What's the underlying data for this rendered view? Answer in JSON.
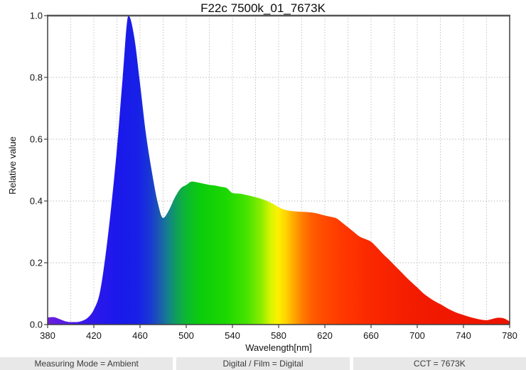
{
  "chart_data": {
    "type": "area",
    "title": "F22c 7500k_01_7673K",
    "xlabel": "Wavelength[nm]",
    "ylabel": "Relative value",
    "xlim": [
      380,
      780
    ],
    "ylim": [
      0.0,
      1.0
    ],
    "x_ticks": [
      380,
      420,
      460,
      500,
      540,
      580,
      620,
      660,
      700,
      740,
      780
    ],
    "y_ticks": [
      {
        "value": 0.0,
        "label": "0.0"
      },
      {
        "value": 0.2,
        "label": "0.2"
      },
      {
        "value": 0.4,
        "label": "0.4"
      },
      {
        "value": 0.6,
        "label": "0.6"
      },
      {
        "value": 0.8,
        "label": "0.8"
      },
      {
        "value": 1.0,
        "label": "1.0"
      }
    ],
    "x_grid_step": 20,
    "y_grid_step": 0.2,
    "grid_style": "dashed",
    "legend": "none",
    "x": [
      380,
      385,
      390,
      395,
      400,
      405,
      410,
      415,
      420,
      425,
      430,
      435,
      440,
      445,
      450,
      455,
      460,
      465,
      470,
      475,
      480,
      485,
      490,
      495,
      500,
      505,
      510,
      515,
      520,
      525,
      530,
      535,
      540,
      545,
      550,
      555,
      560,
      565,
      570,
      575,
      580,
      585,
      590,
      595,
      600,
      605,
      610,
      615,
      620,
      625,
      630,
      635,
      640,
      645,
      650,
      655,
      660,
      665,
      670,
      675,
      680,
      685,
      690,
      695,
      700,
      705,
      710,
      715,
      720,
      725,
      730,
      735,
      740,
      745,
      750,
      755,
      760,
      765,
      770,
      775,
      780
    ],
    "values": [
      0.023,
      0.024,
      0.018,
      0.011,
      0.008,
      0.008,
      0.012,
      0.023,
      0.048,
      0.1,
      0.22,
      0.38,
      0.57,
      0.8,
      1.0,
      0.93,
      0.78,
      0.62,
      0.5,
      0.4,
      0.345,
      0.37,
      0.41,
      0.44,
      0.452,
      0.463,
      0.46,
      0.456,
      0.452,
      0.45,
      0.446,
      0.442,
      0.426,
      0.424,
      0.421,
      0.417,
      0.412,
      0.407,
      0.4,
      0.391,
      0.38,
      0.372,
      0.368,
      0.366,
      0.365,
      0.364,
      0.362,
      0.358,
      0.353,
      0.349,
      0.344,
      0.33,
      0.315,
      0.3,
      0.285,
      0.277,
      0.268,
      0.25,
      0.23,
      0.212,
      0.193,
      0.174,
      0.155,
      0.137,
      0.12,
      0.102,
      0.088,
      0.076,
      0.066,
      0.055,
      0.045,
      0.037,
      0.031,
      0.025,
      0.02,
      0.016,
      0.014,
      0.018,
      0.022,
      0.02,
      0.01
    ],
    "fill": "spectral-gradient",
    "gradient_stops": [
      {
        "wl": 380,
        "color": "#6C1EDC"
      },
      {
        "wl": 397,
        "color": "#531BE8"
      },
      {
        "wl": 418,
        "color": "#2F17EA"
      },
      {
        "wl": 440,
        "color": "#1B18EC"
      },
      {
        "wl": 458,
        "color": "#1820E6"
      },
      {
        "wl": 468,
        "color": "#1936D6"
      },
      {
        "wl": 476,
        "color": "#1A56B4"
      },
      {
        "wl": 484,
        "color": "#15808E"
      },
      {
        "wl": 492,
        "color": "#0FA058"
      },
      {
        "wl": 500,
        "color": "#0CB831"
      },
      {
        "wl": 512,
        "color": "#0BCC0C"
      },
      {
        "wl": 535,
        "color": "#1DD800"
      },
      {
        "wl": 552,
        "color": "#45E300"
      },
      {
        "wl": 565,
        "color": "#8CEC00"
      },
      {
        "wl": 573,
        "color": "#D8F400"
      },
      {
        "wl": 579,
        "color": "#FBF200"
      },
      {
        "wl": 586,
        "color": "#FFD400"
      },
      {
        "wl": 593,
        "color": "#FFA800"
      },
      {
        "wl": 600,
        "color": "#FF8000"
      },
      {
        "wl": 608,
        "color": "#FF6000"
      },
      {
        "wl": 618,
        "color": "#FF4C00"
      },
      {
        "wl": 635,
        "color": "#FF3800"
      },
      {
        "wl": 660,
        "color": "#FA2800"
      },
      {
        "wl": 700,
        "color": "#F21B00"
      },
      {
        "wl": 780,
        "color": "#EC1300"
      }
    ],
    "axis_color": "#3f3f3f",
    "grid_color": "#bbbbbb"
  },
  "status_bar": {
    "items": [
      "Measuring Mode = Ambient",
      "Digital / Film = Digital",
      "CCT = 7673K"
    ]
  }
}
